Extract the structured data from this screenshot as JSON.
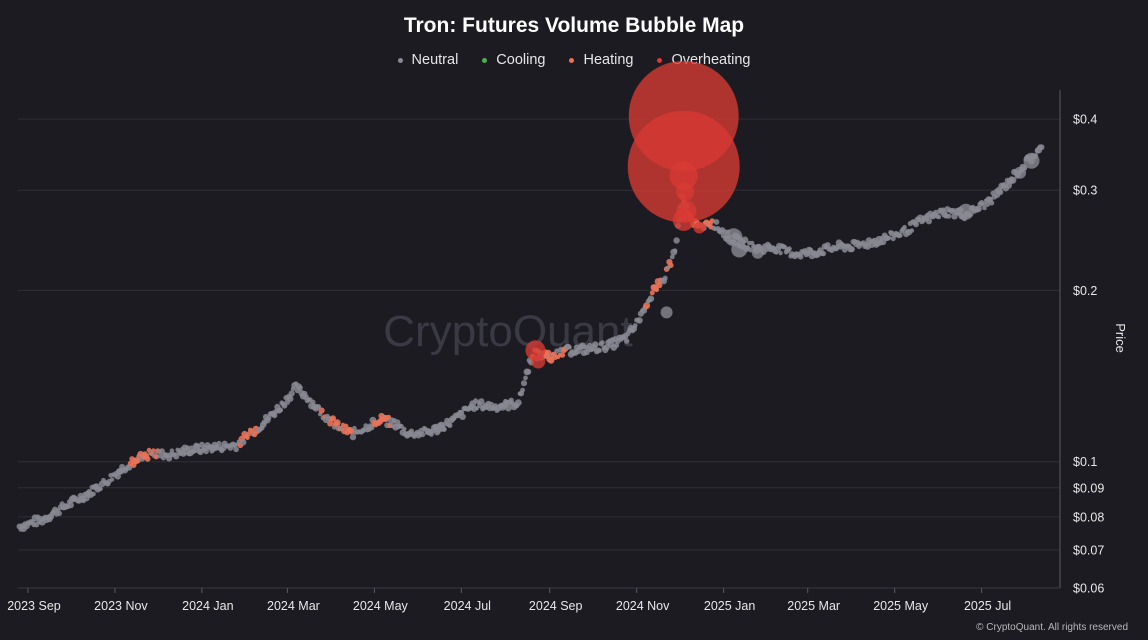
{
  "chart_data": {
    "type": "scatter",
    "title": "Tron: Futures Volume Bubble Map",
    "ylabel": "Price",
    "y_scale": "log",
    "ylim": [
      0.06,
      0.45
    ],
    "xlim": [
      "2023-08-25",
      "2025-08-25"
    ],
    "grid": true,
    "legend_position": "top-center",
    "legend": [
      {
        "label": "Neutral",
        "color": "#8a8a94"
      },
      {
        "label": "Cooling",
        "color": "#4caf50"
      },
      {
        "label": "Heating",
        "color": "#e8735a"
      },
      {
        "label": "Overheating",
        "color": "#d93a33"
      }
    ],
    "y_ticks": [
      {
        "value": 0.4,
        "label": "$0.4"
      },
      {
        "value": 0.3,
        "label": "$0.3"
      },
      {
        "value": 0.2,
        "label": "$0.2"
      },
      {
        "value": 0.1,
        "label": "$0.1"
      },
      {
        "value": 0.09,
        "label": "$0.09"
      },
      {
        "value": 0.08,
        "label": "$0.08"
      },
      {
        "value": 0.07,
        "label": "$0.07"
      },
      {
        "value": 0.06,
        "label": "$0.06"
      }
    ],
    "x_ticks": [
      {
        "date": "2023-09-01",
        "label": "2023 Sep"
      },
      {
        "date": "2023-11-01",
        "label": "2023 Nov"
      },
      {
        "date": "2024-01-01",
        "label": "2024 Jan"
      },
      {
        "date": "2024-03-01",
        "label": "2024 Mar"
      },
      {
        "date": "2024-05-01",
        "label": "2024 May"
      },
      {
        "date": "2024-07-01",
        "label": "2024 Jul"
      },
      {
        "date": "2024-09-01",
        "label": "2024 Sep"
      },
      {
        "date": "2024-11-01",
        "label": "2024 Nov"
      },
      {
        "date": "2025-01-01",
        "label": "2025 Jan"
      },
      {
        "date": "2025-03-01",
        "label": "2025 Mar"
      },
      {
        "date": "2025-05-01",
        "label": "2025 May"
      },
      {
        "date": "2025-07-01",
        "label": "2025 Jul"
      }
    ],
    "price_path": [
      [
        "2023-08-26",
        0.077
      ],
      [
        "2023-09-10",
        0.079
      ],
      [
        "2023-09-25",
        0.083
      ],
      [
        "2023-10-10",
        0.087
      ],
      [
        "2023-10-25",
        0.092
      ],
      [
        "2023-11-10",
        0.099
      ],
      [
        "2023-11-25",
        0.103
      ],
      [
        "2023-12-10",
        0.103
      ],
      [
        "2023-12-25",
        0.105
      ],
      [
        "2024-01-10",
        0.106
      ],
      [
        "2024-01-25",
        0.107
      ],
      [
        "2024-02-10",
        0.115
      ],
      [
        "2024-02-25",
        0.125
      ],
      [
        "2024-03-07",
        0.135
      ],
      [
        "2024-03-15",
        0.13
      ],
      [
        "2024-03-25",
        0.122
      ],
      [
        "2024-04-05",
        0.116
      ],
      [
        "2024-04-15",
        0.112
      ],
      [
        "2024-04-25",
        0.115
      ],
      [
        "2024-05-05",
        0.119
      ],
      [
        "2024-05-15",
        0.117
      ],
      [
        "2024-05-25",
        0.112
      ],
      [
        "2024-06-10",
        0.113
      ],
      [
        "2024-06-25",
        0.118
      ],
      [
        "2024-07-10",
        0.126
      ],
      [
        "2024-07-25",
        0.125
      ],
      [
        "2024-08-10",
        0.127
      ],
      [
        "2024-08-20",
        0.155
      ],
      [
        "2024-09-01",
        0.153
      ],
      [
        "2024-09-15",
        0.157
      ],
      [
        "2024-10-01",
        0.158
      ],
      [
        "2024-10-15",
        0.161
      ],
      [
        "2024-10-25",
        0.165
      ],
      [
        "2024-11-01",
        0.175
      ],
      [
        "2024-11-10",
        0.195
      ],
      [
        "2024-11-20",
        0.21
      ],
      [
        "2024-11-28",
        0.235
      ],
      [
        "2024-12-03",
        0.29
      ],
      [
        "2024-12-08",
        0.27
      ],
      [
        "2024-12-15",
        0.258
      ],
      [
        "2024-12-25",
        0.262
      ],
      [
        "2025-01-05",
        0.248
      ],
      [
        "2025-01-15",
        0.242
      ],
      [
        "2025-01-25",
        0.237
      ],
      [
        "2025-02-05",
        0.238
      ],
      [
        "2025-02-20",
        0.232
      ],
      [
        "2025-03-05",
        0.233
      ],
      [
        "2025-03-20",
        0.238
      ],
      [
        "2025-04-05",
        0.24
      ],
      [
        "2025-04-20",
        0.245
      ],
      [
        "2025-05-05",
        0.252
      ],
      [
        "2025-05-20",
        0.265
      ],
      [
        "2025-06-05",
        0.275
      ],
      [
        "2025-06-20",
        0.272
      ],
      [
        "2025-07-05",
        0.285
      ],
      [
        "2025-07-20",
        0.31
      ],
      [
        "2025-08-01",
        0.335
      ],
      [
        "2025-08-12",
        0.355
      ]
    ],
    "heating_ranges": [
      [
        "2023-11-12",
        "2023-12-01"
      ],
      [
        "2024-01-28",
        "2024-02-10"
      ],
      [
        "2024-03-25",
        "2024-04-15"
      ],
      [
        "2024-05-01",
        "2024-05-12"
      ],
      [
        "2024-08-20",
        "2024-09-12"
      ],
      [
        "2024-11-06",
        "2024-11-25"
      ],
      [
        "2024-12-03",
        "2024-12-24"
      ]
    ],
    "large_bubbles": [
      {
        "date": "2024-08-22",
        "price": 0.157,
        "category": "Overheating",
        "size": 10
      },
      {
        "date": "2024-08-24",
        "price": 0.15,
        "category": "Overheating",
        "size": 7
      },
      {
        "date": "2024-11-22",
        "price": 0.183,
        "category": "Neutral",
        "size": 6
      },
      {
        "date": "2024-12-04",
        "price": 0.405,
        "category": "Overheating",
        "size": 55
      },
      {
        "date": "2024-12-04",
        "price": 0.33,
        "category": "Overheating",
        "size": 56
      },
      {
        "date": "2024-12-04",
        "price": 0.318,
        "category": "Overheating",
        "size": 14
      },
      {
        "date": "2024-12-05",
        "price": 0.298,
        "category": "Overheating",
        "size": 9
      },
      {
        "date": "2024-12-06",
        "price": 0.276,
        "category": "Overheating",
        "size": 10
      },
      {
        "date": "2024-12-04",
        "price": 0.266,
        "category": "Overheating",
        "size": 11
      },
      {
        "date": "2024-12-15",
        "price": 0.258,
        "category": "Overheating",
        "size": 6
      },
      {
        "date": "2025-01-08",
        "price": 0.248,
        "category": "Neutral",
        "size": 9
      },
      {
        "date": "2025-01-12",
        "price": 0.236,
        "category": "Neutral",
        "size": 8
      },
      {
        "date": "2025-01-25",
        "price": 0.233,
        "category": "Neutral",
        "size": 6
      },
      {
        "date": "2025-06-20",
        "price": 0.275,
        "category": "Neutral",
        "size": 8
      },
      {
        "date": "2025-08-05",
        "price": 0.338,
        "category": "Neutral",
        "size": 8
      },
      {
        "date": "2025-07-28",
        "price": 0.322,
        "category": "Neutral",
        "size": 6
      }
    ]
  },
  "y_axis_title": "Price",
  "watermark": "CryptoQuant",
  "credit": "© CryptoQuant. All rights reserved"
}
